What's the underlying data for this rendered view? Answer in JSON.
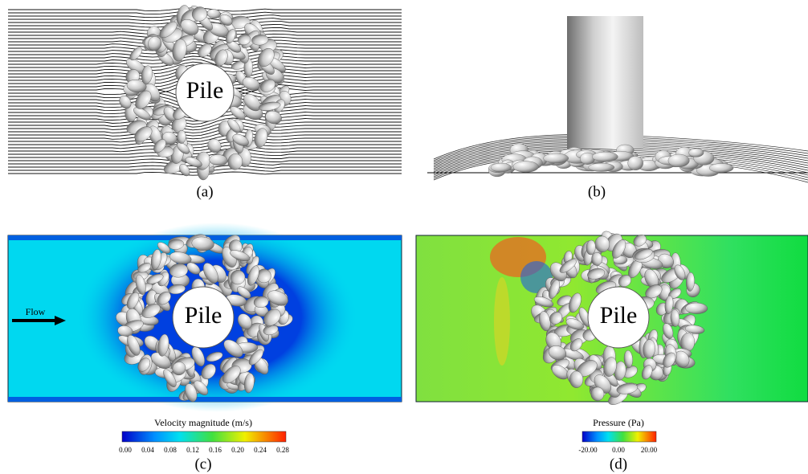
{
  "panels": [
    {
      "label": "(a)",
      "annotation": "Pile"
    },
    {
      "label": "(b)"
    },
    {
      "label": "(c)",
      "annotation": "Pile",
      "flow_label": "Flow",
      "colorbar": {
        "title": "Velocity magnitude (m/s)",
        "ticks": [
          "0.00",
          "0.04",
          "0.08",
          "0.12",
          "0.16",
          "0.20",
          "0.24",
          "0.28"
        ]
      }
    },
    {
      "label": "(d)",
      "annotation": "Pile",
      "colorbar": {
        "title": "Pressure (Pa)",
        "ticks": [
          "-20.00",
          "0.00",
          "20.00"
        ]
      }
    }
  ]
}
